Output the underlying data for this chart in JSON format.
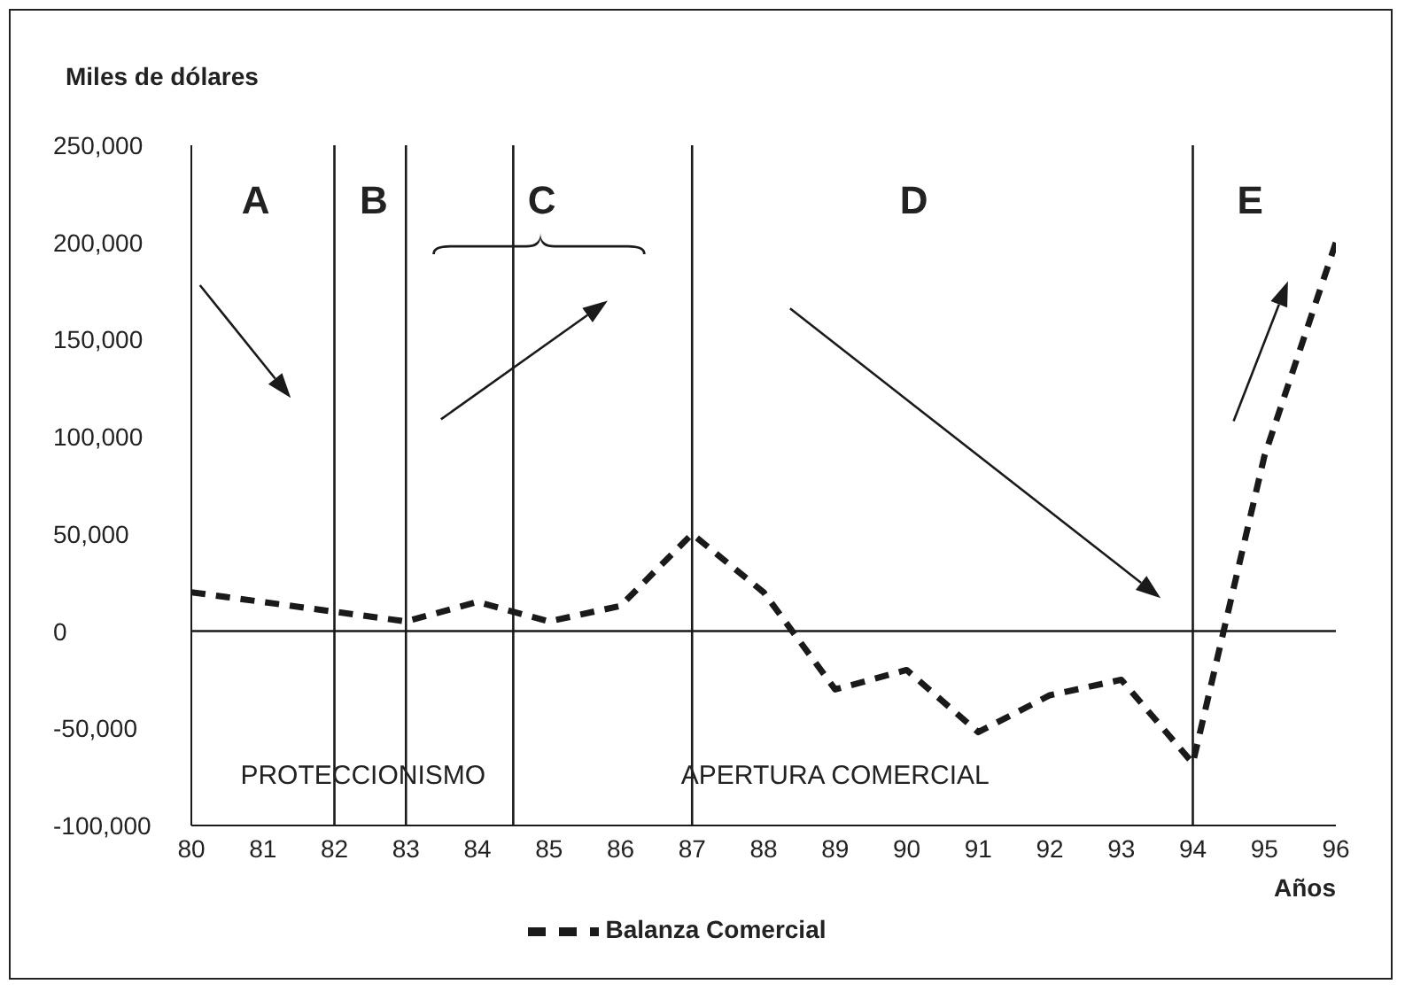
{
  "chart_data": {
    "type": "line",
    "ylabel": "Miles de dólares",
    "xlabel": "Años",
    "x": [
      80,
      81,
      82,
      83,
      84,
      85,
      86,
      87,
      88,
      89,
      90,
      91,
      92,
      93,
      94,
      95,
      96
    ],
    "series": [
      {
        "name": "Balanza Comercial",
        "color": "#1a1a1a",
        "line_style": "dashed",
        "values": [
          20000,
          15000,
          10000,
          5000,
          15000,
          5000,
          13000,
          50000,
          20000,
          -30000,
          -20000,
          -52000,
          -33000,
          -25000,
          -68000,
          90000,
          200000
        ]
      }
    ],
    "xlim": [
      80,
      96
    ],
    "xticks": [
      80,
      81,
      82,
      83,
      84,
      85,
      86,
      87,
      88,
      89,
      90,
      91,
      92,
      93,
      94,
      95,
      96
    ],
    "ylim": [
      -100000,
      250000
    ],
    "yticks": [
      {
        "value": -100000,
        "label": "-100,000"
      },
      {
        "value": -50000,
        "label": "-50,000"
      },
      {
        "value": 0,
        "label": "0"
      },
      {
        "value": 50000,
        "label": "50,000"
      },
      {
        "value": 100000,
        "label": "100,000"
      },
      {
        "value": 150000,
        "label": "150,000"
      },
      {
        "value": 200000,
        "label": "200,000"
      },
      {
        "value": 250000,
        "label": "250,000"
      }
    ],
    "ref_lines": [
      {
        "axis": "y",
        "value": 0,
        "color": "#1a1a1a"
      },
      {
        "axis": "x",
        "value": 82,
        "color": "#1a1a1a"
      },
      {
        "axis": "x",
        "value": 83,
        "color": "#1a1a1a"
      },
      {
        "axis": "x",
        "value": 84.5,
        "color": "#1a1a1a"
      },
      {
        "axis": "x",
        "value": 87,
        "color": "#1a1a1a"
      },
      {
        "axis": "x",
        "value": 94,
        "color": "#1a1a1a"
      }
    ],
    "annotations": [
      "A",
      "B",
      "C",
      "D",
      "E",
      "PROTECCIONISMO",
      "APERTURA COMERCIAL"
    ],
    "legend": "bottom",
    "marker": "none"
  }
}
